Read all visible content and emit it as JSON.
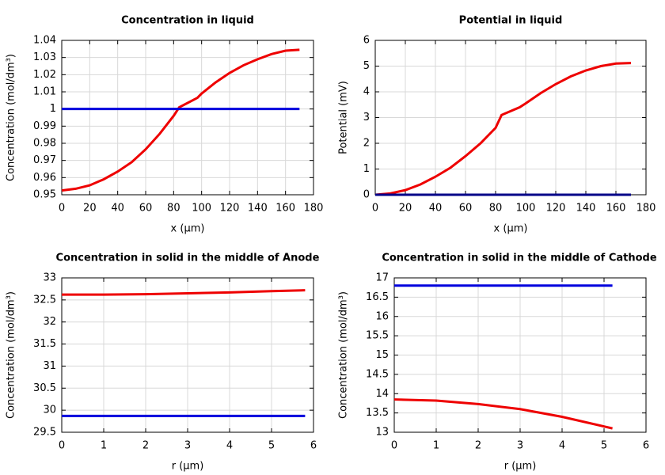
{
  "chart_data": [
    {
      "type": "line",
      "title": "Concentration in liquid",
      "xlabel": "x (µm)",
      "ylabel": "Concentration (mol/dm³)",
      "xlim": [
        0,
        180
      ],
      "xticks": [
        0,
        20,
        40,
        60,
        80,
        100,
        120,
        140,
        160,
        180
      ],
      "ylim": [
        0.95,
        1.04
      ],
      "yticks": [
        0.95,
        0.96,
        0.97,
        0.98,
        0.99,
        1,
        1.01,
        1.02,
        1.03,
        1.04
      ],
      "grid": true,
      "series": [
        {
          "color": "#ee0000",
          "x": [
            0,
            10,
            20,
            30,
            40,
            50,
            60,
            70,
            80,
            84,
            97,
            100,
            110,
            120,
            130,
            140,
            150,
            160,
            170
          ],
          "values": [
            0.9525,
            0.9535,
            0.9555,
            0.959,
            0.9635,
            0.969,
            0.9765,
            0.9855,
            0.996,
            1.001,
            1.0065,
            1.009,
            1.0155,
            1.021,
            1.0255,
            1.029,
            1.032,
            1.034,
            1.0345
          ]
        },
        {
          "color": "#0000dd",
          "x": [
            0,
            170
          ],
          "values": [
            1,
            1
          ]
        }
      ]
    },
    {
      "type": "line",
      "title": "Potential in liquid",
      "xlabel": "x (µm)",
      "ylabel": "Potential (mV)",
      "xlim": [
        0,
        180
      ],
      "xticks": [
        0,
        20,
        40,
        60,
        80,
        100,
        120,
        140,
        160,
        180
      ],
      "ylim": [
        0,
        6
      ],
      "yticks": [
        0,
        1,
        2,
        3,
        4,
        5,
        6
      ],
      "grid": true,
      "series": [
        {
          "color": "#ee0000",
          "x": [
            0,
            10,
            20,
            30,
            40,
            50,
            60,
            70,
            80,
            84,
            96,
            100,
            110,
            120,
            130,
            140,
            150,
            160,
            170
          ],
          "values": [
            0,
            0.05,
            0.18,
            0.4,
            0.7,
            1.05,
            1.5,
            2,
            2.6,
            3.1,
            3.4,
            3.55,
            3.95,
            4.3,
            4.6,
            4.83,
            5,
            5.1,
            5.12
          ]
        },
        {
          "color": "#000088",
          "x": [
            0,
            170
          ],
          "values": [
            0,
            0
          ]
        }
      ]
    },
    {
      "type": "line",
      "title": "Concentration in solid in the middle of Anode",
      "xlabel": "r (µm)",
      "ylabel": "Concentration (mol/dm³)",
      "xlim": [
        0,
        6
      ],
      "xticks": [
        0,
        1,
        2,
        3,
        4,
        5,
        6
      ],
      "ylim": [
        29.5,
        33
      ],
      "yticks": [
        29.5,
        30,
        30.5,
        31,
        31.5,
        32,
        32.5,
        33
      ],
      "grid": true,
      "series": [
        {
          "color": "#ee0000",
          "x": [
            0,
            1,
            2,
            3,
            4,
            5,
            5.8
          ],
          "values": [
            32.62,
            32.62,
            32.63,
            32.65,
            32.67,
            32.7,
            32.72
          ]
        },
        {
          "color": "#0000dd",
          "x": [
            0,
            5.8
          ],
          "values": [
            29.87,
            29.87
          ]
        }
      ]
    },
    {
      "type": "line",
      "title": "Concentration in solid in the middle of Cathode",
      "xlabel": "r (µm)",
      "ylabel": "Concentration (mol/dm³)",
      "xlim": [
        0,
        6
      ],
      "xticks": [
        0,
        1,
        2,
        3,
        4,
        5,
        6
      ],
      "ylim": [
        13,
        17
      ],
      "yticks": [
        13,
        13.5,
        14,
        14.5,
        15,
        15.5,
        16,
        16.5,
        17
      ],
      "grid": true,
      "series": [
        {
          "color": "#ee0000",
          "x": [
            0,
            1,
            2,
            3,
            4,
            5,
            5.2
          ],
          "values": [
            13.85,
            13.82,
            13.73,
            13.6,
            13.4,
            13.15,
            13.1
          ]
        },
        {
          "color": "#0000dd",
          "x": [
            0,
            5.2
          ],
          "values": [
            16.8,
            16.8
          ]
        }
      ]
    }
  ]
}
